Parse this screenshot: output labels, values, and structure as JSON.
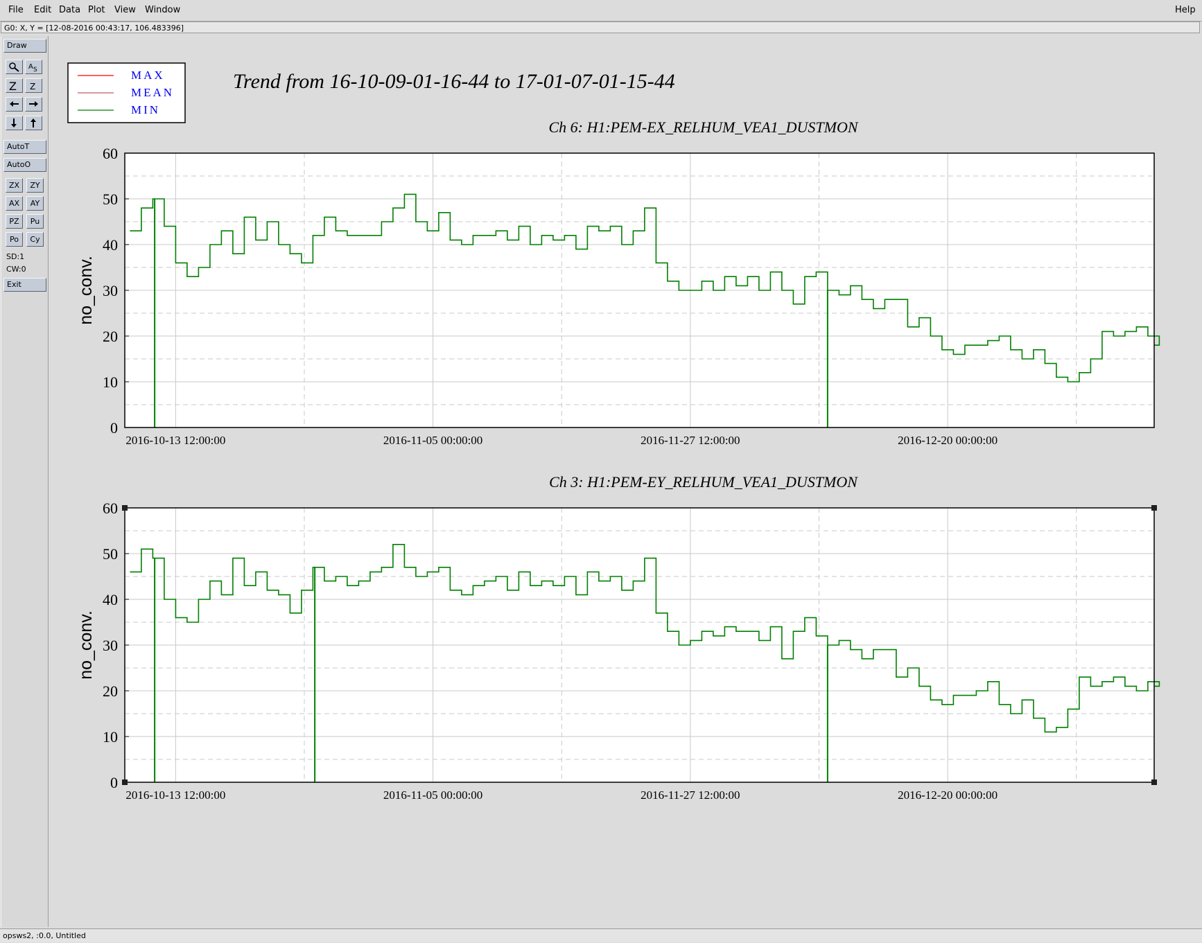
{
  "menu": {
    "items": [
      "File",
      "Edit",
      "Data",
      "Plot",
      "View",
      "Window"
    ],
    "help": "Help"
  },
  "coord_readout": "G0: X, Y = [12-08-2016 00:43:17, 106.483396]",
  "toolbar": {
    "draw": "Draw",
    "autot": "AutoT",
    "autoo": "AutoO",
    "zx": "ZX",
    "zy": "ZY",
    "ax": "AX",
    "ay": "AY",
    "pz": "PZ",
    "pu": "Pu",
    "po": "Po",
    "cy": "Cy",
    "sd": "SD:1",
    "cw": "CW:0",
    "exit": "Exit"
  },
  "status": "opsws2, :0.0, Untitled",
  "title": "Trend from 16-10-09-01-16-44 to 17-01-07-01-15-44",
  "legend": [
    {
      "name": "MAX",
      "color": "#ff0000"
    },
    {
      "name": "MEAN",
      "color": "#b86060"
    },
    {
      "name": "MIN",
      "color": "#008000"
    }
  ],
  "colors": {
    "series": "#008000",
    "legend_text": "#0000ee",
    "grid": "#c8c8c8"
  },
  "chart_data": [
    {
      "type": "line",
      "title": "Ch 6: H1:PEM-EX_RELHUM_VEA1_DUSTMON",
      "ylabel": "no_conv.",
      "xlabel": "",
      "ylim": [
        0,
        60
      ],
      "yticks": [
        0,
        10,
        20,
        30,
        40,
        50,
        60
      ],
      "xlim": [
        "2016-10-09 01:16:44",
        "2017-01-07 01:15:44"
      ],
      "xticks": [
        "2016-10-13 12:00:00",
        "2016-11-05 00:00:00",
        "2016-11-27 12:00:00",
        "2016-12-20 00:00:00"
      ],
      "grid": true,
      "drops_to_zero": [
        "2016-10-11 16:00:00",
        "2016-12-09 12:00:00"
      ],
      "series": [
        {
          "name": "MIN",
          "x": [
            "2016-10-09",
            "2016-10-10",
            "2016-10-11",
            "2016-10-12",
            "2016-10-13",
            "2016-10-14",
            "2016-10-15",
            "2016-10-16",
            "2016-10-17",
            "2016-10-18",
            "2016-10-19",
            "2016-10-20",
            "2016-10-21",
            "2016-10-22",
            "2016-10-23",
            "2016-10-24",
            "2016-10-25",
            "2016-10-26",
            "2016-10-27",
            "2016-10-28",
            "2016-10-29",
            "2016-10-30",
            "2016-10-31",
            "2016-11-01",
            "2016-11-02",
            "2016-11-03",
            "2016-11-04",
            "2016-11-05",
            "2016-11-06",
            "2016-11-07",
            "2016-11-08",
            "2016-11-09",
            "2016-11-10",
            "2016-11-11",
            "2016-11-12",
            "2016-11-13",
            "2016-11-14",
            "2016-11-15",
            "2016-11-16",
            "2016-11-17",
            "2016-11-18",
            "2016-11-19",
            "2016-11-20",
            "2016-11-21",
            "2016-11-22",
            "2016-11-23",
            "2016-11-24",
            "2016-11-25",
            "2016-11-26",
            "2016-11-27",
            "2016-11-28",
            "2016-11-29",
            "2016-11-30",
            "2016-12-01",
            "2016-12-02",
            "2016-12-03",
            "2016-12-04",
            "2016-12-05",
            "2016-12-06",
            "2016-12-07",
            "2016-12-08",
            "2016-12-09",
            "2016-12-10",
            "2016-12-11",
            "2016-12-12",
            "2016-12-13",
            "2016-12-14",
            "2016-12-15",
            "2016-12-16",
            "2016-12-17",
            "2016-12-18",
            "2016-12-19",
            "2016-12-20",
            "2016-12-21",
            "2016-12-22",
            "2016-12-23",
            "2016-12-24",
            "2016-12-25",
            "2016-12-26",
            "2016-12-27",
            "2016-12-28",
            "2016-12-29",
            "2016-12-30",
            "2016-12-31",
            "2017-01-01",
            "2017-01-02",
            "2017-01-03",
            "2017-01-04",
            "2017-01-05",
            "2017-01-06",
            "2017-01-07"
          ],
          "values": [
            43,
            48,
            50,
            44,
            36,
            33,
            35,
            40,
            43,
            38,
            46,
            41,
            45,
            40,
            38,
            36,
            42,
            46,
            43,
            42,
            42,
            42,
            45,
            48,
            51,
            45,
            43,
            47,
            41,
            40,
            42,
            42,
            43,
            41,
            44,
            40,
            42,
            41,
            42,
            39,
            44,
            43,
            44,
            40,
            43,
            48,
            36,
            32,
            30,
            30,
            32,
            30,
            33,
            31,
            33,
            30,
            34,
            30,
            27,
            33,
            34,
            30,
            29,
            31,
            28,
            26,
            28,
            28,
            22,
            24,
            20,
            17,
            16,
            18,
            18,
            19,
            20,
            17,
            15,
            17,
            14,
            11,
            10,
            12,
            15,
            21,
            20,
            21,
            22,
            20,
            18
          ]
        }
      ]
    },
    {
      "type": "line",
      "title": "Ch 3: H1:PEM-EY_RELHUM_VEA1_DUSTMON",
      "ylabel": "no_conv.",
      "xlabel": "",
      "ylim": [
        0,
        60
      ],
      "yticks": [
        0,
        10,
        20,
        30,
        40,
        50,
        60
      ],
      "xlim": [
        "2016-10-09 01:16:44",
        "2017-01-07 01:15:44"
      ],
      "xticks": [
        "2016-10-13 12:00:00",
        "2016-11-05 00:00:00",
        "2016-11-27 12:00:00",
        "2016-12-20 00:00:00"
      ],
      "grid": true,
      "drops_to_zero": [
        "2016-10-11 16:00:00",
        "2016-10-25 16:00:00",
        "2016-12-09 12:00:00"
      ],
      "series": [
        {
          "name": "MIN",
          "x": [
            "2016-10-09",
            "2016-10-10",
            "2016-10-11",
            "2016-10-12",
            "2016-10-13",
            "2016-10-14",
            "2016-10-15",
            "2016-10-16",
            "2016-10-17",
            "2016-10-18",
            "2016-10-19",
            "2016-10-20",
            "2016-10-21",
            "2016-10-22",
            "2016-10-23",
            "2016-10-24",
            "2016-10-25",
            "2016-10-26",
            "2016-10-27",
            "2016-10-28",
            "2016-10-29",
            "2016-10-30",
            "2016-10-31",
            "2016-11-01",
            "2016-11-02",
            "2016-11-03",
            "2016-11-04",
            "2016-11-05",
            "2016-11-06",
            "2016-11-07",
            "2016-11-08",
            "2016-11-09",
            "2016-11-10",
            "2016-11-11",
            "2016-11-12",
            "2016-11-13",
            "2016-11-14",
            "2016-11-15",
            "2016-11-16",
            "2016-11-17",
            "2016-11-18",
            "2016-11-19",
            "2016-11-20",
            "2016-11-21",
            "2016-11-22",
            "2016-11-23",
            "2016-11-24",
            "2016-11-25",
            "2016-11-26",
            "2016-11-27",
            "2016-11-28",
            "2016-11-29",
            "2016-11-30",
            "2016-12-01",
            "2016-12-02",
            "2016-12-03",
            "2016-12-04",
            "2016-12-05",
            "2016-12-06",
            "2016-12-07",
            "2016-12-08",
            "2016-12-09",
            "2016-12-10",
            "2016-12-11",
            "2016-12-12",
            "2016-12-13",
            "2016-12-14",
            "2016-12-15",
            "2016-12-16",
            "2016-12-17",
            "2016-12-18",
            "2016-12-19",
            "2016-12-20",
            "2016-12-21",
            "2016-12-22",
            "2016-12-23",
            "2016-12-24",
            "2016-12-25",
            "2016-12-26",
            "2016-12-27",
            "2016-12-28",
            "2016-12-29",
            "2016-12-30",
            "2016-12-31",
            "2017-01-01",
            "2017-01-02",
            "2017-01-03",
            "2017-01-04",
            "2017-01-05",
            "2017-01-06",
            "2017-01-07"
          ],
          "values": [
            46,
            51,
            49,
            40,
            36,
            35,
            40,
            44,
            41,
            49,
            43,
            46,
            42,
            41,
            37,
            42,
            47,
            44,
            45,
            43,
            44,
            46,
            47,
            52,
            47,
            45,
            46,
            47,
            42,
            41,
            43,
            44,
            45,
            42,
            46,
            43,
            44,
            43,
            45,
            41,
            46,
            44,
            45,
            42,
            44,
            49,
            37,
            33,
            30,
            31,
            33,
            32,
            34,
            33,
            33,
            31,
            34,
            27,
            33,
            36,
            32,
            30,
            31,
            29,
            27,
            29,
            29,
            23,
            25,
            21,
            18,
            17,
            19,
            19,
            20,
            22,
            17,
            15,
            18,
            14,
            11,
            12,
            16,
            23,
            21,
            22,
            23,
            21,
            20,
            22,
            21
          ]
        }
      ]
    }
  ]
}
